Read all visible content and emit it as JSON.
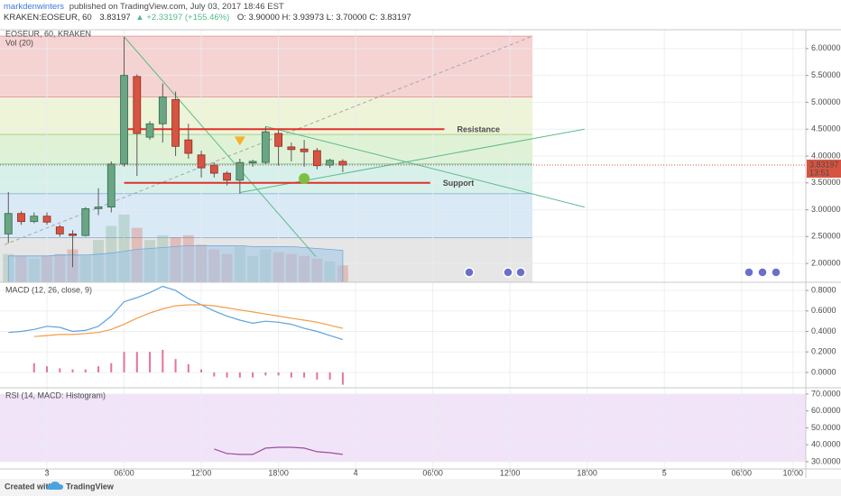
{
  "header": {
    "author": "markdenwinters",
    "published": "published on TradingView.com, July 03, 2017 18:46 EST",
    "symbol": "KRAKEN:EOSEUR, 60",
    "last": "3.83197",
    "change": "▲ +2.33197 (+155.46%)",
    "ohlc": "O: 3.90000 H: 3.93973 L: 3.70000 C: 3.83197"
  },
  "footer": {
    "created": "Created with",
    "brand": "TradingView"
  },
  "chart_data": [
    {
      "type": "candlestick",
      "title": "EOSEUR, 60, KRAKEN",
      "volume_title": "Vol (20)",
      "x": [
        -3,
        -2,
        -1,
        0,
        1,
        2,
        3,
        4,
        5,
        6,
        7,
        8,
        9,
        10,
        11,
        12,
        13,
        14,
        15,
        16,
        17,
        18,
        19,
        20,
        21,
        22,
        23
      ],
      "open": [
        2.55,
        2.93,
        2.78,
        2.88,
        2.68,
        2.55,
        2.52,
        3.02,
        3.05,
        3.85,
        5.48,
        4.35,
        4.6,
        5.05,
        4.3,
        4.02,
        3.83,
        3.68,
        3.55,
        3.87,
        3.88,
        4.42,
        4.17,
        4.13,
        4.1,
        3.83,
        3.9
      ],
      "high": [
        3.33,
        2.97,
        2.95,
        2.95,
        2.72,
        2.62,
        3.05,
        3.4,
        3.9,
        6.22,
        5.52,
        4.65,
        5.35,
        5.2,
        4.6,
        4.1,
        3.88,
        3.72,
        3.95,
        3.93,
        4.55,
        4.48,
        4.25,
        4.3,
        4.15,
        3.95,
        3.93973
      ],
      "low": [
        2.38,
        2.72,
        2.75,
        2.72,
        2.5,
        1.93,
        2.5,
        2.9,
        2.95,
        3.8,
        3.63,
        4.3,
        4.25,
        4.0,
        3.95,
        3.6,
        3.6,
        3.45,
        3.3,
        3.8,
        3.85,
        3.82,
        3.9,
        3.8,
        3.75,
        3.78,
        3.7
      ],
      "close": [
        2.93,
        2.78,
        2.88,
        2.77,
        2.55,
        2.52,
        3.02,
        3.05,
        3.85,
        5.5,
        4.42,
        4.6,
        5.1,
        4.18,
        4.05,
        3.78,
        3.68,
        3.55,
        3.88,
        3.9,
        4.45,
        4.18,
        4.12,
        4.08,
        3.82,
        3.92,
        3.83197
      ],
      "up_color": "#6ba583",
      "down_color": "#d75442",
      "volume": [
        30,
        28,
        25,
        28,
        30,
        35,
        28,
        45,
        60,
        72,
        58,
        45,
        50,
        48,
        50,
        40,
        35,
        30,
        38,
        28,
        35,
        32,
        30,
        28,
        25,
        22,
        18
      ],
      "volume_ma": [
        28,
        28,
        28,
        28,
        29,
        29,
        29,
        30,
        31,
        33,
        35,
        36,
        37,
        38,
        39,
        39,
        39,
        39,
        39,
        38,
        38,
        38,
        38,
        37,
        36,
        35,
        34
      ],
      "volume_ma_color": "#9fc5e8",
      "countdown": "13:51",
      "xlim": [
        -3.65,
        59
      ],
      "ylim": [
        1.65,
        6.35
      ],
      "yticks": [
        {
          "value": 6,
          "label": "6.00000"
        },
        {
          "value": 5.5,
          "label": "5.50000"
        },
        {
          "value": 5,
          "label": "5.00000"
        },
        {
          "value": 4.5,
          "label": "4.50000"
        },
        {
          "value": 4,
          "label": "4.00000"
        },
        {
          "value": 3.5,
          "label": "3.50000"
        },
        {
          "value": 3,
          "label": "3.00000"
        },
        {
          "value": 2.5,
          "label": "2.50000"
        },
        {
          "value": 2,
          "label": "2.00000"
        }
      ],
      "grid": true,
      "drawings": {
        "fib": {
          "x": [
            -3.65,
            37.75
          ],
          "levels": [
            6.23,
            5.1,
            4.4,
            3.85,
            3.3,
            2.48,
            1.65
          ],
          "fills": [
            "#f6d3d3",
            "#eef4d8",
            "#dff2d6",
            "#d7f1ea",
            "#d9e9f6",
            "#e6e6e6"
          ],
          "lines": [
            "#e6a0a0",
            "#e6a0a0",
            "#a9d28f",
            "#7cc8a8",
            "#93bade",
            "#93bade",
            "#bbbbbb"
          ]
        },
        "lines": [
          {
            "points": [
              [
                -3.3,
                2.35
              ],
              [
                37.75,
                6.23
              ]
            ],
            "color": "#a8a8a8",
            "dashed": true
          },
          {
            "points": [
              [
                6,
                6.22
              ],
              [
                20.9,
                2.13
              ]
            ],
            "color": "#5fb98a",
            "dashed": false
          },
          {
            "points": [
              [
                15,
                3.32
              ],
              [
                41.8,
                4.5
              ]
            ],
            "color": "#5fb98a",
            "dashed": false
          },
          {
            "points": [
              [
                17,
                4.55
              ],
              [
                41.8,
                3.05
              ]
            ],
            "color": "#5fb98a",
            "dashed": false
          }
        ],
        "levels": [
          {
            "label": "Resistance",
            "price": 4.5,
            "x": [
              6,
              30.9
            ],
            "color": "#e0302c"
          },
          {
            "label": "Support",
            "price": 3.5,
            "x": [
              6,
              29.8
            ],
            "color": "#e0302c"
          }
        ],
        "markers": [
          {
            "shape": "triangle",
            "x": 15,
            "price": 4.28,
            "color": "#f6b12b"
          },
          {
            "shape": "circle",
            "x": 20,
            "price": 3.58,
            "color": "#7bc043"
          }
        ]
      }
    },
    {
      "type": "line",
      "title": "MACD (12, 26, close, 9)",
      "x": [
        -3,
        -2,
        -1,
        0,
        1,
        2,
        3,
        4,
        5,
        6,
        7,
        8,
        9,
        10,
        11,
        12,
        13,
        14,
        15,
        16,
        17,
        18,
        19,
        20,
        21,
        22,
        23
      ],
      "series": [
        {
          "color": "#5ba3e0",
          "values": [
            0.39,
            0.4,
            0.42,
            0.45,
            0.44,
            0.4,
            0.41,
            0.45,
            0.55,
            0.69,
            0.73,
            0.78,
            0.84,
            0.8,
            0.72,
            0.66,
            0.6,
            0.55,
            0.51,
            0.48,
            0.5,
            0.49,
            0.47,
            0.43,
            0.4,
            0.36,
            0.32
          ]
        },
        {
          "color": "#f39c4a",
          "values": [
            null,
            null,
            0.35,
            0.36,
            0.37,
            0.37,
            0.38,
            0.39,
            0.42,
            0.47,
            0.53,
            0.58,
            0.62,
            0.65,
            0.66,
            0.66,
            0.65,
            0.63,
            0.61,
            0.59,
            0.57,
            0.55,
            0.53,
            0.51,
            0.49,
            0.46,
            0.43
          ]
        }
      ],
      "histogram": {
        "color": "#e57399",
        "values": [
          null,
          null,
          0.09,
          0.06,
          0.04,
          0.03,
          0.03,
          0.06,
          0.09,
          0.2,
          0.2,
          0.2,
          0.22,
          0.13,
          0.08,
          0.03,
          -0.04,
          -0.05,
          -0.05,
          -0.05,
          -0.03,
          -0.03,
          -0.05,
          -0.05,
          -0.07,
          -0.07,
          -0.12
        ]
      },
      "xlim": [
        -3.65,
        59
      ],
      "ylim": [
        -0.15,
        0.88
      ],
      "yticks": [
        {
          "value": 0.8,
          "label": "0.8000"
        },
        {
          "value": 0.6,
          "label": "0.6000"
        },
        {
          "value": 0.4,
          "label": "0.4000"
        },
        {
          "value": 0.2,
          "label": "0.2000"
        },
        {
          "value": 0,
          "label": "0.0000"
        }
      ],
      "grid": true
    },
    {
      "type": "line",
      "title": "RSI (14, MACD: Histogram)",
      "x": [
        -3,
        -2,
        -1,
        0,
        1,
        2,
        3,
        4,
        5,
        6,
        7,
        8,
        9,
        10,
        11,
        12,
        13,
        14,
        15,
        16,
        17,
        18,
        19,
        20,
        21,
        22,
        23
      ],
      "series": [
        {
          "color": "#9c4ea0",
          "values": [
            null,
            null,
            null,
            null,
            null,
            null,
            null,
            null,
            null,
            null,
            null,
            null,
            null,
            null,
            null,
            null,
            37.5,
            34.8,
            34.3,
            34.3,
            38,
            38.5,
            38.5,
            38,
            35.9,
            35.3,
            34.3
          ]
        }
      ],
      "band": [
        30,
        70
      ],
      "band_color": "#f1e4f9",
      "xlim": [
        -3.65,
        59
      ],
      "ylim": [
        25.7,
        73.7
      ],
      "yticks": [
        {
          "value": 70,
          "label": "70.0000"
        },
        {
          "value": 60,
          "label": "60.0000"
        },
        {
          "value": 50,
          "label": "50.0000"
        },
        {
          "value": 40,
          "label": "40.0000"
        },
        {
          "value": 30,
          "label": "30.0000"
        }
      ],
      "xticks": [
        {
          "value": 0,
          "label": "3"
        },
        {
          "value": 6,
          "label": "06:00"
        },
        {
          "value": 12,
          "label": "12:00"
        },
        {
          "value": 18,
          "label": "18:00"
        },
        {
          "value": 24,
          "label": "4"
        },
        {
          "value": 30,
          "label": "06:00"
        },
        {
          "value": 36,
          "label": "12:00"
        },
        {
          "value": 42,
          "label": "18:00"
        },
        {
          "value": 48,
          "label": "5"
        },
        {
          "value": 54,
          "label": "06:00"
        },
        {
          "value": 58,
          "label": "10:00"
        }
      ],
      "grid": true
    }
  ]
}
